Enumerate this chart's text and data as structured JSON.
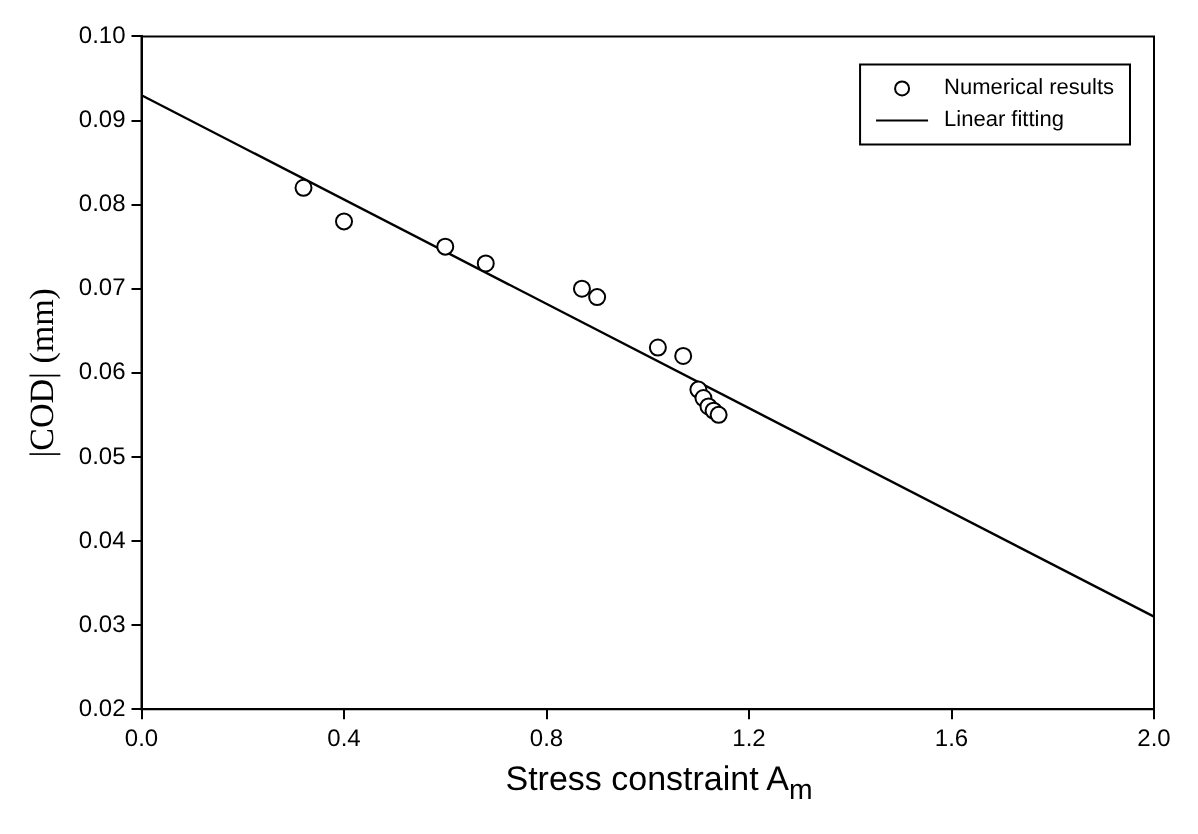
{
  "chart_data": {
    "type": "scatter",
    "xlabel": "Stress constraint A$_{m}$",
    "ylabel": "|COD| (mm)",
    "xlim": [
      0,
      2.0
    ],
    "ylim": [
      0.02,
      0.1
    ],
    "xticks": [
      "0.0",
      0.4,
      0.8,
      1.2,
      1.6,
      "2.0"
    ],
    "yticks": [
      0.02,
      0.03,
      0.04,
      0.05,
      0.06,
      0.07,
      0.08,
      0.09,
      "0.10"
    ],
    "grid": false,
    "legend": "top right",
    "marker": "circle",
    "series": [
      {
        "name": "Numerical results",
        "color": "#000000",
        "x": [
          0.32,
          0.4,
          0.6,
          0.68,
          0.87,
          0.9,
          1.02,
          1.07,
          1.1,
          1.11,
          1.12,
          1.13,
          1.14
        ],
        "values": [
          0.082,
          0.078,
          0.075,
          0.073,
          0.07,
          0.069,
          0.063,
          0.062,
          0.058,
          0.057,
          0.056,
          0.0555,
          0.055
        ]
      },
      {
        "name": "Linear fitting",
        "color": "#000000",
        "type": "line",
        "marker": "none",
        "line_style": "solid",
        "x": [
          0,
          2.0
        ],
        "values": [
          0.093,
          0.031
        ]
      }
    ]
  }
}
